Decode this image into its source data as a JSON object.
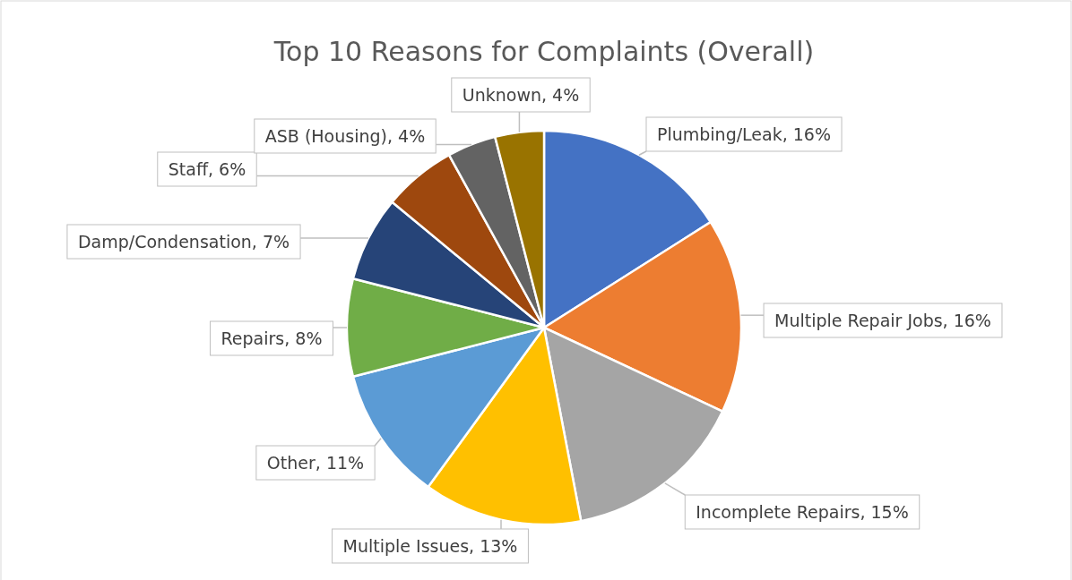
{
  "chart_data": {
    "type": "pie",
    "title": "Top 10 Reasons for Complaints (Overall)",
    "categories": [
      "Plumbing/Leak",
      "Multiple Repair Jobs",
      "Incomplete Repairs",
      "Multiple Issues",
      "Other",
      "Repairs",
      "Damp/Condensation",
      "Staff",
      "ASB (Housing)",
      "Unknown"
    ],
    "values": [
      16,
      16,
      15,
      13,
      11,
      8,
      7,
      6,
      4,
      4
    ],
    "value_labels": [
      "16%",
      "16%",
      "15%",
      "13%",
      "11%",
      "8%",
      "7%",
      "6%",
      "4%",
      "4%"
    ],
    "colors": [
      "#4472c4",
      "#ed7d31",
      "#a5a5a5",
      "#ffc000",
      "#5b9bd5",
      "#70ad47",
      "#264478",
      "#9e480e",
      "#636363",
      "#997300"
    ]
  }
}
